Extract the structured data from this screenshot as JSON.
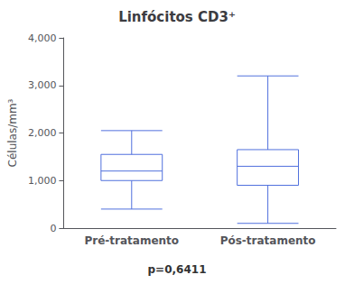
{
  "chart_data": {
    "type": "boxplot",
    "title": "Linfócitos CD3⁺",
    "ylabel": "Células/mm³",
    "annotation": "p=0,6411",
    "categories": [
      "Pré-tratamento",
      "Pós-tratamento"
    ],
    "values": [
      [
        400,
        1000,
        1200,
        1550,
        2050
      ],
      [
        100,
        900,
        1300,
        1650,
        3200
      ]
    ],
    "ylim": [
      0,
      4000
    ],
    "yticks": [
      0,
      1000,
      2000,
      3000,
      4000
    ],
    "grid": false
  }
}
